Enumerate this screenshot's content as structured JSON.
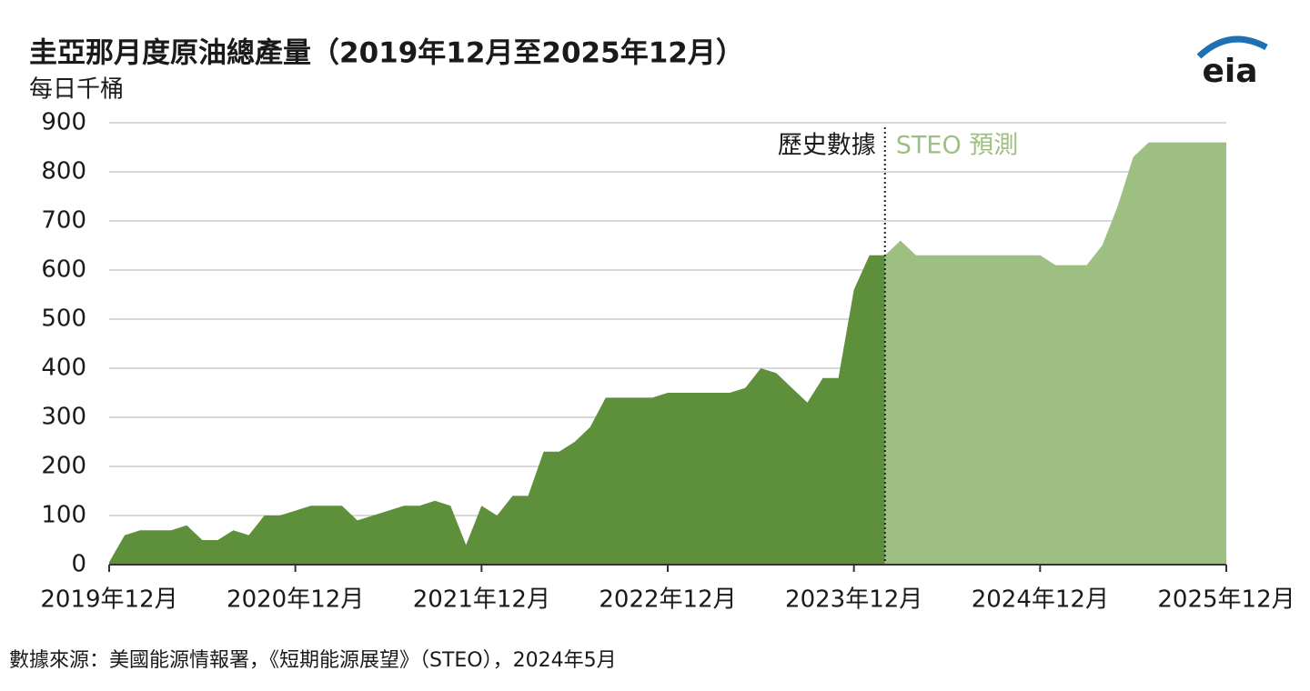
{
  "chart_data": {
    "type": "area",
    "title": "圭亞那月度原油總產量（2019年12月至2025年12月）",
    "y_label": "每日千桶",
    "source": "數據來源：美國能源情報署，《短期能源展望》（STEO），2024年5月",
    "logo": "eia",
    "annotations": [
      "歷史數據",
      "STEO 預測"
    ],
    "categories": [
      "2019年12月",
      null,
      null,
      null,
      null,
      null,
      null,
      null,
      null,
      null,
      null,
      null,
      "2020年12月",
      null,
      null,
      null,
      null,
      null,
      null,
      null,
      null,
      null,
      null,
      null,
      "2021年12月",
      null,
      null,
      null,
      null,
      null,
      null,
      null,
      null,
      null,
      null,
      null,
      "2022年12月",
      null,
      null,
      null,
      null,
      null,
      null,
      null,
      null,
      null,
      null,
      null,
      "2023年12月",
      null,
      null,
      null,
      null,
      null,
      null,
      null,
      null,
      null,
      null,
      null,
      "2024年12月",
      null,
      null,
      null,
      null,
      null,
      null,
      null,
      null,
      null,
      null,
      null,
      "2025年12月"
    ],
    "series": [
      {
        "name": "歷史數據",
        "color": "#5e8f3b",
        "values": [
          5,
          60,
          70,
          70,
          70,
          80,
          50,
          50,
          70,
          60,
          100,
          100,
          110,
          120,
          120,
          120,
          90,
          100,
          110,
          120,
          120,
          130,
          120,
          40,
          120,
          100,
          140,
          140,
          230,
          230,
          250,
          280,
          340,
          340,
          340,
          340,
          350,
          350,
          350,
          350,
          350,
          360,
          400,
          390,
          360,
          330,
          380,
          380,
          560,
          630,
          630,
          null,
          null,
          null,
          null,
          null,
          null,
          null,
          null,
          null,
          null,
          null,
          null,
          null,
          null,
          null,
          null,
          null,
          null,
          null,
          null,
          null,
          null
        ]
      },
      {
        "name": "STEO 預測",
        "color": "#9dc082",
        "values": [
          null,
          null,
          null,
          null,
          null,
          null,
          null,
          null,
          null,
          null,
          null,
          null,
          null,
          null,
          null,
          null,
          null,
          null,
          null,
          null,
          null,
          null,
          null,
          null,
          null,
          null,
          null,
          null,
          null,
          null,
          null,
          null,
          null,
          null,
          null,
          null,
          null,
          null,
          null,
          null,
          null,
          null,
          null,
          null,
          null,
          null,
          null,
          null,
          null,
          null,
          630,
          660,
          630,
          630,
          630,
          630,
          630,
          630,
          630,
          630,
          630,
          610,
          610,
          610,
          650,
          730,
          830,
          860,
          860,
          860,
          860,
          860,
          860
        ]
      }
    ],
    "ylim": [
      0,
      900
    ],
    "yticks": [
      0,
      100,
      200,
      300,
      400,
      500,
      600,
      700,
      800,
      900
    ],
    "grid": true
  }
}
